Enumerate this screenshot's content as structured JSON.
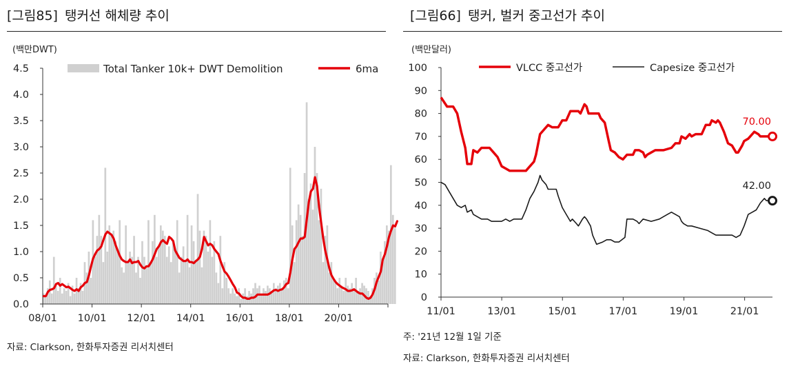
{
  "left": {
    "fig_num": "[그림85]",
    "fig_title": "탱커선 해체량 추이",
    "source": "자료: Clarkson, 한화투자증권 리서치센터"
  },
  "right": {
    "fig_num": "[그림66]",
    "fig_title": "탱커, 벌커 중고선가 추이",
    "note": "주: '21년 12월 1일 기준",
    "source": "자료: Clarkson, 한화투자증권 리서치센터"
  },
  "chart_data": [
    {
      "type": "bar",
      "title": "탱커선 해체량 추이",
      "unit_label": "(백만DWT)",
      "ylim": [
        0,
        4.5
      ],
      "yticks": [
        "0.0",
        "0.5",
        "1.0",
        "1.5",
        "2.0",
        "2.5",
        "3.0",
        "3.5",
        "4.0",
        "4.5"
      ],
      "xticks": [
        "08/01",
        "10/01",
        "12/01",
        "14/01",
        "16/01",
        "18/01",
        "20/01"
      ],
      "x_start_year": 2008,
      "n_months": 168,
      "legend": [
        "Total Tanker 10k+ DWT Demolition",
        "6ma"
      ],
      "colors": {
        "bars": "#d0d0d0",
        "ma": "#e5000a"
      },
      "series": [
        {
          "name": "Total Tanker 10k+ DWT Demolition",
          "values": [
            0.2,
            0.15,
            0.3,
            0.45,
            0.2,
            0.9,
            0.35,
            0.25,
            0.5,
            0.2,
            0.3,
            0.25,
            0.4,
            0.15,
            0.35,
            0.2,
            0.5,
            0.3,
            0.4,
            0.25,
            0.8,
            0.6,
            1.0,
            0.5,
            1.6,
            0.9,
            1.3,
            1.7,
            1.3,
            0.8,
            2.6,
            1.0,
            1.5,
            1.3,
            1.4,
            1.2,
            1.0,
            1.6,
            0.7,
            0.6,
            1.5,
            0.8,
            1.0,
            0.9,
            1.3,
            0.6,
            0.9,
            0.5,
            1.2,
            0.9,
            0.7,
            1.6,
            0.8,
            1.2,
            1.7,
            0.9,
            1.1,
            1.5,
            1.4,
            1.3,
            0.9,
            1.1,
            0.8,
            1.2,
            1.0,
            1.6,
            0.6,
            0.9,
            1.1,
            0.8,
            1.7,
            0.7,
            1.5,
            1.2,
            0.8,
            2.1,
            1.4,
            0.7,
            1.4,
            1.3,
            1.0,
            1.6,
            0.9,
            1.2,
            0.6,
            0.4,
            1.3,
            0.3,
            0.8,
            0.5,
            0.3,
            0.2,
            0.3,
            0.2,
            0.15,
            0.3,
            0.1,
            0.2,
            0.3,
            0.15,
            0.25,
            0.2,
            0.3,
            0.4,
            0.3,
            0.35,
            0.2,
            0.3,
            0.25,
            0.35,
            0.3,
            0.25,
            0.4,
            0.3,
            0.35,
            0.4,
            0.3,
            0.45,
            0.5,
            0.3,
            2.6,
            1.5,
            0.8,
            1.6,
            1.9,
            1.7,
            1.3,
            2.5,
            3.85,
            2.0,
            2.3,
            1.8,
            3.0,
            2.5,
            1.6,
            2.2,
            0.8,
            1.3,
            1.5,
            0.6,
            0.8,
            0.5,
            0.4,
            0.3,
            0.5,
            0.35,
            0.25,
            0.5,
            0.35,
            0.3,
            0.4,
            0.3,
            0.5,
            0.25,
            0.3,
            0.4,
            0.35,
            0.3,
            0.25,
            0.15,
            0.3,
            0.5,
            0.6,
            0.45,
            1.0,
            0.8,
            1.2,
            1.5,
            1.4,
            2.65,
            1.7,
            1.45
          ]
        },
        {
          "name": "6ma",
          "values": [
            0.15,
            0.15,
            0.23,
            0.27,
            0.28,
            0.3,
            0.38,
            0.4,
            0.35,
            0.38,
            0.35,
            0.32,
            0.33,
            0.3,
            0.27,
            0.25,
            0.28,
            0.25,
            0.32,
            0.35,
            0.4,
            0.42,
            0.55,
            0.72,
            0.87,
            0.95,
            1.02,
            1.05,
            1.1,
            1.22,
            1.33,
            1.38,
            1.35,
            1.32,
            1.25,
            1.12,
            1.02,
            0.92,
            0.85,
            0.82,
            0.8,
            0.8,
            0.85,
            0.78,
            0.8,
            0.8,
            0.82,
            0.75,
            0.7,
            0.68,
            0.72,
            0.72,
            0.78,
            0.85,
            0.95,
            1.05,
            1.1,
            1.18,
            1.22,
            1.18,
            1.15,
            1.28,
            1.25,
            1.2,
            1.02,
            0.95,
            0.88,
            0.85,
            0.82,
            0.82,
            0.85,
            0.8,
            0.8,
            0.78,
            0.82,
            0.85,
            0.9,
            1.05,
            1.28,
            1.2,
            1.12,
            1.15,
            1.12,
            1.05,
            1.0,
            0.95,
            0.82,
            0.72,
            0.62,
            0.58,
            0.52,
            0.45,
            0.38,
            0.32,
            0.22,
            0.2,
            0.15,
            0.12,
            0.12,
            0.1,
            0.1,
            0.12,
            0.12,
            0.14,
            0.18,
            0.18,
            0.18,
            0.18,
            0.18,
            0.18,
            0.2,
            0.23,
            0.26,
            0.27,
            0.25,
            0.27,
            0.28,
            0.32,
            0.38,
            0.4,
            0.6,
            0.85,
            1.05,
            1.1,
            1.18,
            1.25,
            1.25,
            1.28,
            1.62,
            1.95,
            2.15,
            2.2,
            2.42,
            2.25,
            1.85,
            1.55,
            1.25,
            1.02,
            0.85,
            0.68,
            0.55,
            0.48,
            0.42,
            0.38,
            0.35,
            0.32,
            0.3,
            0.28,
            0.25,
            0.25,
            0.26,
            0.28,
            0.25,
            0.22,
            0.2,
            0.2,
            0.16,
            0.12,
            0.1,
            0.12,
            0.18,
            0.28,
            0.42,
            0.52,
            0.62,
            0.85,
            0.95,
            1.1,
            1.28,
            1.4,
            1.5,
            1.48,
            1.58
          ]
        }
      ]
    },
    {
      "type": "line",
      "title": "탱커, 벌커 중고선가 추이",
      "unit_label": "(백만달러)",
      "ylim": [
        0,
        100
      ],
      "yticks": [
        "0",
        "10",
        "20",
        "30",
        "40",
        "50",
        "60",
        "70",
        "80",
        "90",
        "100"
      ],
      "xticks": [
        "11/01",
        "13/01",
        "15/01",
        "17/01",
        "19/01",
        "21/01"
      ],
      "x_start_year": 2011,
      "x_end": "2021-12",
      "legend": [
        "VLCC 중고선가",
        "Capesize 중고선가"
      ],
      "end_labels": [
        "70.00",
        "42.00"
      ],
      "colors": {
        "vlcc": "#e5000a",
        "capesize": "#1a1a1a"
      },
      "series": [
        {
          "name": "VLCC 중고선가",
          "points": [
            [
              0,
              87
            ],
            [
              3,
              83
            ],
            [
              6,
              83
            ],
            [
              8,
              80
            ],
            [
              10,
              72
            ],
            [
              12,
              65
            ],
            [
              13,
              58
            ],
            [
              15,
              58
            ],
            [
              16,
              64
            ],
            [
              18,
              63
            ],
            [
              20,
              65
            ],
            [
              24,
              65
            ],
            [
              26,
              63
            ],
            [
              28,
              61
            ],
            [
              30,
              57
            ],
            [
              32,
              56
            ],
            [
              34,
              55
            ],
            [
              38,
              55
            ],
            [
              42,
              55
            ],
            [
              44,
              57
            ],
            [
              46,
              59
            ],
            [
              47,
              62
            ],
            [
              49,
              71
            ],
            [
              51,
              73
            ],
            [
              53,
              75
            ],
            [
              55,
              74
            ],
            [
              58,
              74
            ],
            [
              60,
              77
            ],
            [
              62,
              77
            ],
            [
              64,
              81
            ],
            [
              68,
              81
            ],
            [
              69,
              80
            ],
            [
              71,
              84
            ],
            [
              72,
              83
            ],
            [
              73,
              80
            ],
            [
              75,
              80
            ],
            [
              78,
              80
            ],
            [
              79,
              78
            ],
            [
              81,
              76
            ],
            [
              82,
              72
            ],
            [
              83,
              68
            ],
            [
              84,
              64
            ],
            [
              86,
              63
            ],
            [
              88,
              61
            ],
            [
              90,
              60
            ],
            [
              92,
              62
            ],
            [
              95,
              62
            ],
            [
              96,
              64
            ],
            [
              98,
              64
            ],
            [
              100,
              63
            ],
            [
              101,
              61
            ],
            [
              102,
              62
            ],
            [
              104,
              63
            ],
            [
              106,
              64
            ],
            [
              110,
              64
            ],
            [
              114,
              65
            ],
            [
              116,
              67
            ],
            [
              118,
              67
            ],
            [
              119,
              70
            ],
            [
              121,
              69
            ],
            [
              123,
              71
            ],
            [
              124,
              70
            ],
            [
              126,
              71
            ],
            [
              129,
              71
            ],
            [
              131,
              75
            ],
            [
              133,
              75
            ],
            [
              134,
              77
            ],
            [
              136,
              76
            ],
            [
              137,
              77
            ],
            [
              138,
              76
            ],
            [
              140,
              72
            ],
            [
              142,
              67
            ],
            [
              144,
              66
            ],
            [
              146,
              63
            ],
            [
              147,
              63
            ],
            [
              149,
              66
            ],
            [
              150,
              68
            ],
            [
              152,
              69
            ],
            [
              154,
              71
            ],
            [
              155,
              72
            ],
            [
              157,
              71
            ],
            [
              158,
              70
            ],
            [
              160,
              70
            ],
            [
              161,
              70
            ],
            [
              164,
              70
            ]
          ]
        },
        {
          "name": "Capesize 중고선가",
          "points": [
            [
              0,
              50
            ],
            [
              2,
              49
            ],
            [
              4,
              46
            ],
            [
              6,
              43
            ],
            [
              8,
              40
            ],
            [
              10,
              39
            ],
            [
              12,
              40
            ],
            [
              13,
              37
            ],
            [
              15,
              38
            ],
            [
              16,
              36
            ],
            [
              18,
              35
            ],
            [
              20,
              34
            ],
            [
              23,
              34
            ],
            [
              25,
              33
            ],
            [
              27,
              33
            ],
            [
              30,
              33
            ],
            [
              32,
              34
            ],
            [
              34,
              33
            ],
            [
              36,
              34
            ],
            [
              40,
              34
            ],
            [
              42,
              38
            ],
            [
              44,
              43
            ],
            [
              46,
              46
            ],
            [
              48,
              50
            ],
            [
              49,
              53
            ],
            [
              50,
              51
            ],
            [
              52,
              49
            ],
            [
              53,
              47
            ],
            [
              55,
              47
            ],
            [
              57,
              47
            ],
            [
              58,
              44
            ],
            [
              60,
              39
            ],
            [
              62,
              36
            ],
            [
              64,
              33
            ],
            [
              65,
              34
            ],
            [
              67,
              32
            ],
            [
              68,
              31
            ],
            [
              70,
              34
            ],
            [
              71,
              35
            ],
            [
              72,
              34
            ],
            [
              74,
              31
            ],
            [
              75,
              27
            ],
            [
              76,
              25
            ],
            [
              77,
              23
            ],
            [
              80,
              24
            ],
            [
              82,
              25
            ],
            [
              84,
              25
            ],
            [
              86,
              24
            ],
            [
              88,
              24
            ],
            [
              91,
              26
            ],
            [
              92,
              34
            ],
            [
              95,
              34
            ],
            [
              97,
              33
            ],
            [
              98,
              32
            ],
            [
              100,
              34
            ],
            [
              104,
              33
            ],
            [
              108,
              34
            ],
            [
              112,
              36
            ],
            [
              114,
              37
            ],
            [
              116,
              36
            ],
            [
              118,
              35
            ],
            [
              119,
              33
            ],
            [
              120,
              32
            ],
            [
              122,
              31
            ],
            [
              124,
              31
            ],
            [
              128,
              30
            ],
            [
              132,
              29
            ],
            [
              134,
              28
            ],
            [
              136,
              27
            ],
            [
              144,
              27
            ],
            [
              146,
              26
            ],
            [
              148,
              27
            ],
            [
              150,
              31
            ],
            [
              152,
              36
            ],
            [
              154,
              37
            ],
            [
              156,
              38
            ],
            [
              158,
              41
            ],
            [
              160,
              43
            ],
            [
              161,
              42
            ],
            [
              164,
              42
            ]
          ]
        }
      ]
    }
  ]
}
